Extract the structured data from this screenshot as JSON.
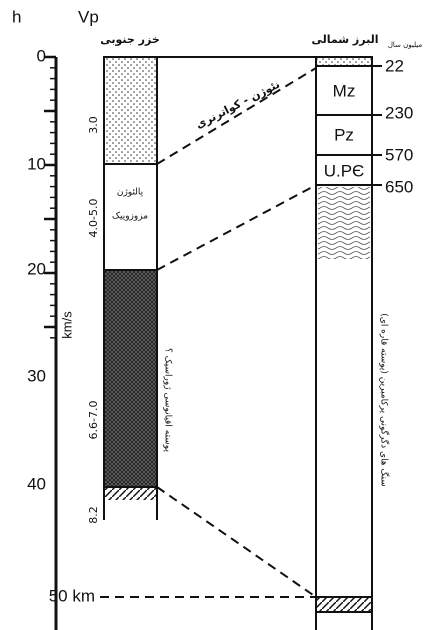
{
  "header": {
    "depth_symbol": "h",
    "velocity_symbol": "Vp",
    "left_column_title": "خزر جنوبی",
    "right_column_title": "البرز شمالی",
    "age_unit": "میلیون سال"
  },
  "depth_axis": {
    "labels": [
      "0",
      "10",
      "20",
      "30",
      "40",
      "50 km"
    ],
    "velocity_unit": "km/s"
  },
  "left_column": {
    "velocities": [
      "3.0",
      "4.0-5.0",
      "6.6-7.0",
      "8.2"
    ],
    "layers": [
      "پالئوژن",
      "مزوزوییک",
      "پوسته اقیانوسی ژوراسیک ؟"
    ]
  },
  "middle_label": "نئوژن - کواترنری",
  "right_column": {
    "units": [
      "Mz",
      "Pz",
      "U.PЄ"
    ],
    "ages": [
      "22",
      "230",
      "570",
      "650"
    ],
    "basement_label": "سنگ های دگرگونی پرکامبرین (پوسته قاره ای)"
  }
}
